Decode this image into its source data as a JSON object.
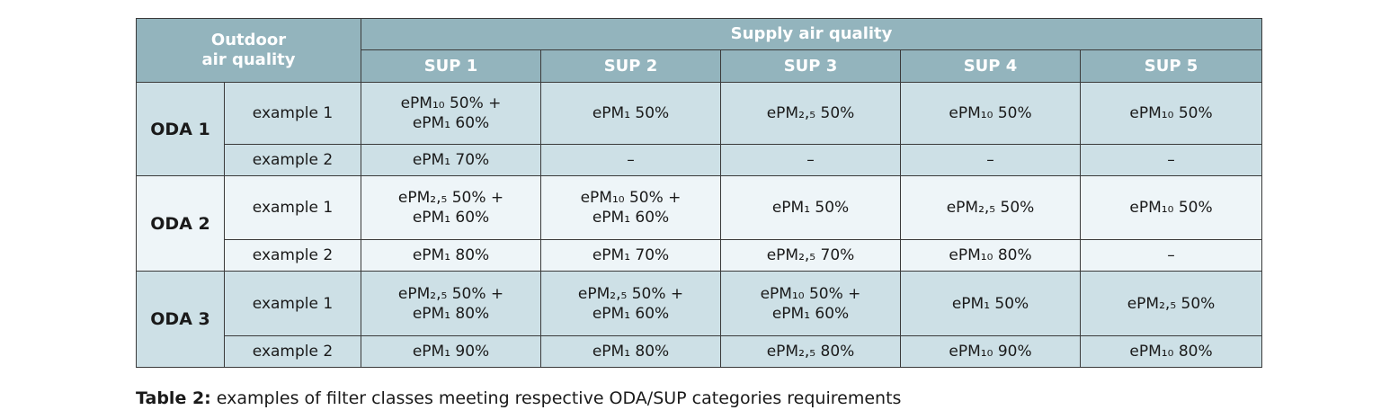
{
  "table": {
    "header": {
      "outdoor_label": [
        "Outdoor",
        "air quality"
      ],
      "supply_label": "Supply air quality",
      "sup_columns": [
        "SUP 1",
        "SUP 2",
        "SUP 3",
        "SUP 4",
        "SUP 5"
      ]
    },
    "groups": [
      {
        "oda": "ODA 1",
        "rows": [
          {
            "example": "example 1",
            "cells": [
              [
                "ePM₁₀ 50% +",
                "ePM₁ 60%"
              ],
              [
                "ePM₁ 50%"
              ],
              [
                "ePM₂,₅ 50%"
              ],
              [
                "ePM₁₀ 50%"
              ],
              [
                "ePM₁₀ 50%"
              ]
            ]
          },
          {
            "example": "example 2",
            "cells": [
              [
                "ePM₁ 70%"
              ],
              [
                "–"
              ],
              [
                "–"
              ],
              [
                "–"
              ],
              [
                "–"
              ]
            ]
          }
        ]
      },
      {
        "oda": "ODA 2",
        "rows": [
          {
            "example": "example 1",
            "cells": [
              [
                "ePM₂,₅ 50% +",
                "ePM₁ 60%"
              ],
              [
                "ePM₁₀ 50% +",
                "ePM₁ 60%"
              ],
              [
                "ePM₁ 50%"
              ],
              [
                "ePM₂,₅ 50%"
              ],
              [
                "ePM₁₀ 50%"
              ]
            ]
          },
          {
            "example": "example 2",
            "cells": [
              [
                "ePM₁ 80%"
              ],
              [
                "ePM₁ 70%"
              ],
              [
                "ePM₂,₅ 70%"
              ],
              [
                "ePM₁₀ 80%"
              ],
              [
                "–"
              ]
            ]
          }
        ]
      },
      {
        "oda": "ODA 3",
        "rows": [
          {
            "example": "example 1",
            "cells": [
              [
                "ePM₂,₅ 50% +",
                "ePM₁ 80%"
              ],
              [
                "ePM₂,₅ 50% +",
                "ePM₁ 60%"
              ],
              [
                "ePM₁₀ 50% +",
                "ePM₁ 60%"
              ],
              [
                "ePM₁ 50%"
              ],
              [
                "ePM₂,₅ 50%"
              ]
            ]
          },
          {
            "example": "example 2",
            "cells": [
              [
                "ePM₁ 90%"
              ],
              [
                "ePM₁ 80%"
              ],
              [
                "ePM₂,₅ 80%"
              ],
              [
                "ePM₁₀ 90%"
              ],
              [
                "ePM₁₀ 80%"
              ]
            ]
          }
        ]
      }
    ]
  },
  "caption": {
    "label": "Table 2:",
    "text": " examples of filter classes meeting respective ODA/SUP categories requirements"
  },
  "colors": {
    "header_bg": "#93b4bd",
    "band_dark": "#cde0e6",
    "band_light": "#eef5f8"
  }
}
